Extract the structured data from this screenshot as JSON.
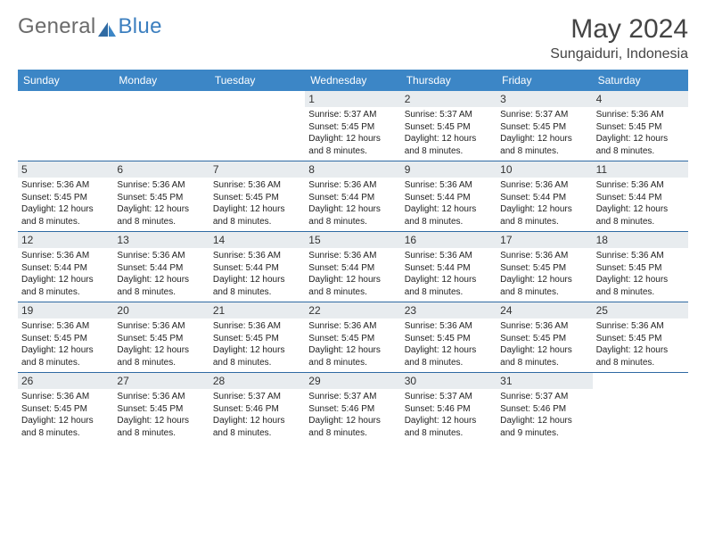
{
  "brand": {
    "text1": "General",
    "text2": "Blue",
    "accent": "#3c7fbf"
  },
  "header": {
    "title": "May 2024",
    "location": "Sungaiduri, Indonesia"
  },
  "colors": {
    "header_bg": "#3c86c6",
    "header_text": "#ffffff",
    "row_divider": "#2f6aa3",
    "daynum_bg": "#e8ecef",
    "body_text": "#222222",
    "page_bg": "#ffffff"
  },
  "dow": [
    "Sunday",
    "Monday",
    "Tuesday",
    "Wednesday",
    "Thursday",
    "Friday",
    "Saturday"
  ],
  "weeks": [
    [
      {
        "n": "",
        "sr": "",
        "ss": "",
        "dl": ""
      },
      {
        "n": "",
        "sr": "",
        "ss": "",
        "dl": ""
      },
      {
        "n": "",
        "sr": "",
        "ss": "",
        "dl": ""
      },
      {
        "n": "1",
        "sr": "Sunrise: 5:37 AM",
        "ss": "Sunset: 5:45 PM",
        "dl": "Daylight: 12 hours and 8 minutes."
      },
      {
        "n": "2",
        "sr": "Sunrise: 5:37 AM",
        "ss": "Sunset: 5:45 PM",
        "dl": "Daylight: 12 hours and 8 minutes."
      },
      {
        "n": "3",
        "sr": "Sunrise: 5:37 AM",
        "ss": "Sunset: 5:45 PM",
        "dl": "Daylight: 12 hours and 8 minutes."
      },
      {
        "n": "4",
        "sr": "Sunrise: 5:36 AM",
        "ss": "Sunset: 5:45 PM",
        "dl": "Daylight: 12 hours and 8 minutes."
      }
    ],
    [
      {
        "n": "5",
        "sr": "Sunrise: 5:36 AM",
        "ss": "Sunset: 5:45 PM",
        "dl": "Daylight: 12 hours and 8 minutes."
      },
      {
        "n": "6",
        "sr": "Sunrise: 5:36 AM",
        "ss": "Sunset: 5:45 PM",
        "dl": "Daylight: 12 hours and 8 minutes."
      },
      {
        "n": "7",
        "sr": "Sunrise: 5:36 AM",
        "ss": "Sunset: 5:45 PM",
        "dl": "Daylight: 12 hours and 8 minutes."
      },
      {
        "n": "8",
        "sr": "Sunrise: 5:36 AM",
        "ss": "Sunset: 5:44 PM",
        "dl": "Daylight: 12 hours and 8 minutes."
      },
      {
        "n": "9",
        "sr": "Sunrise: 5:36 AM",
        "ss": "Sunset: 5:44 PM",
        "dl": "Daylight: 12 hours and 8 minutes."
      },
      {
        "n": "10",
        "sr": "Sunrise: 5:36 AM",
        "ss": "Sunset: 5:44 PM",
        "dl": "Daylight: 12 hours and 8 minutes."
      },
      {
        "n": "11",
        "sr": "Sunrise: 5:36 AM",
        "ss": "Sunset: 5:44 PM",
        "dl": "Daylight: 12 hours and 8 minutes."
      }
    ],
    [
      {
        "n": "12",
        "sr": "Sunrise: 5:36 AM",
        "ss": "Sunset: 5:44 PM",
        "dl": "Daylight: 12 hours and 8 minutes."
      },
      {
        "n": "13",
        "sr": "Sunrise: 5:36 AM",
        "ss": "Sunset: 5:44 PM",
        "dl": "Daylight: 12 hours and 8 minutes."
      },
      {
        "n": "14",
        "sr": "Sunrise: 5:36 AM",
        "ss": "Sunset: 5:44 PM",
        "dl": "Daylight: 12 hours and 8 minutes."
      },
      {
        "n": "15",
        "sr": "Sunrise: 5:36 AM",
        "ss": "Sunset: 5:44 PM",
        "dl": "Daylight: 12 hours and 8 minutes."
      },
      {
        "n": "16",
        "sr": "Sunrise: 5:36 AM",
        "ss": "Sunset: 5:44 PM",
        "dl": "Daylight: 12 hours and 8 minutes."
      },
      {
        "n": "17",
        "sr": "Sunrise: 5:36 AM",
        "ss": "Sunset: 5:45 PM",
        "dl": "Daylight: 12 hours and 8 minutes."
      },
      {
        "n": "18",
        "sr": "Sunrise: 5:36 AM",
        "ss": "Sunset: 5:45 PM",
        "dl": "Daylight: 12 hours and 8 minutes."
      }
    ],
    [
      {
        "n": "19",
        "sr": "Sunrise: 5:36 AM",
        "ss": "Sunset: 5:45 PM",
        "dl": "Daylight: 12 hours and 8 minutes."
      },
      {
        "n": "20",
        "sr": "Sunrise: 5:36 AM",
        "ss": "Sunset: 5:45 PM",
        "dl": "Daylight: 12 hours and 8 minutes."
      },
      {
        "n": "21",
        "sr": "Sunrise: 5:36 AM",
        "ss": "Sunset: 5:45 PM",
        "dl": "Daylight: 12 hours and 8 minutes."
      },
      {
        "n": "22",
        "sr": "Sunrise: 5:36 AM",
        "ss": "Sunset: 5:45 PM",
        "dl": "Daylight: 12 hours and 8 minutes."
      },
      {
        "n": "23",
        "sr": "Sunrise: 5:36 AM",
        "ss": "Sunset: 5:45 PM",
        "dl": "Daylight: 12 hours and 8 minutes."
      },
      {
        "n": "24",
        "sr": "Sunrise: 5:36 AM",
        "ss": "Sunset: 5:45 PM",
        "dl": "Daylight: 12 hours and 8 minutes."
      },
      {
        "n": "25",
        "sr": "Sunrise: 5:36 AM",
        "ss": "Sunset: 5:45 PM",
        "dl": "Daylight: 12 hours and 8 minutes."
      }
    ],
    [
      {
        "n": "26",
        "sr": "Sunrise: 5:36 AM",
        "ss": "Sunset: 5:45 PM",
        "dl": "Daylight: 12 hours and 8 minutes."
      },
      {
        "n": "27",
        "sr": "Sunrise: 5:36 AM",
        "ss": "Sunset: 5:45 PM",
        "dl": "Daylight: 12 hours and 8 minutes."
      },
      {
        "n": "28",
        "sr": "Sunrise: 5:37 AM",
        "ss": "Sunset: 5:46 PM",
        "dl": "Daylight: 12 hours and 8 minutes."
      },
      {
        "n": "29",
        "sr": "Sunrise: 5:37 AM",
        "ss": "Sunset: 5:46 PM",
        "dl": "Daylight: 12 hours and 8 minutes."
      },
      {
        "n": "30",
        "sr": "Sunrise: 5:37 AM",
        "ss": "Sunset: 5:46 PM",
        "dl": "Daylight: 12 hours and 8 minutes."
      },
      {
        "n": "31",
        "sr": "Sunrise: 5:37 AM",
        "ss": "Sunset: 5:46 PM",
        "dl": "Daylight: 12 hours and 9 minutes."
      },
      {
        "n": "",
        "sr": "",
        "ss": "",
        "dl": ""
      }
    ]
  ]
}
